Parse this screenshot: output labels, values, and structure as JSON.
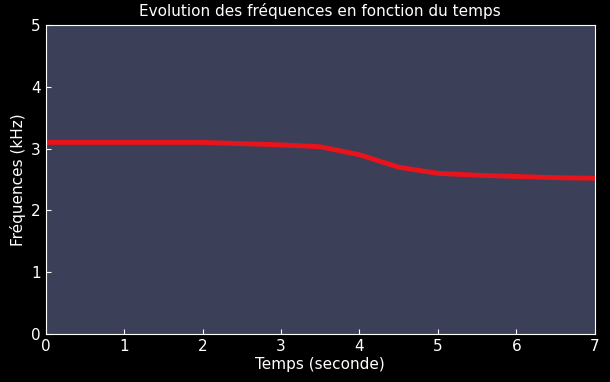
{
  "chart_data": {
    "type": "line",
    "title": "Evolution des fréquences en fonction du temps",
    "x_label": "Temps (seconde)",
    "y_label": "Fréquences (kHz)",
    "x": [
      0,
      0.5,
      1,
      1.5,
      2,
      2.5,
      3,
      3.5,
      4,
      4.5,
      5,
      5.5,
      6,
      6.5,
      7
    ],
    "values": [
      3.1,
      3.1,
      3.1,
      3.1,
      3.1,
      3.08,
      3.06,
      3.03,
      2.9,
      2.7,
      2.6,
      2.57,
      2.55,
      2.53,
      2.52
    ],
    "color": "#e8131b",
    "xlim": [
      0,
      7
    ],
    "xticks": [
      0,
      1,
      2,
      3,
      4,
      5,
      6,
      7
    ],
    "ylim": [
      0,
      5
    ],
    "yticks": [
      0,
      1,
      2,
      3,
      4,
      5
    ],
    "grid": false
  }
}
